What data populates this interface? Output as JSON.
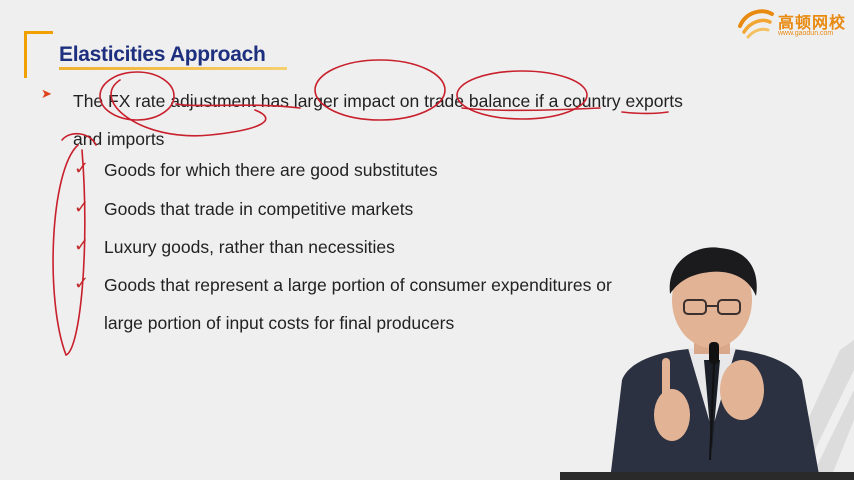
{
  "slide": {
    "title": "Elasticities Approach",
    "intro_bullet": "➤",
    "intro_text": "The FX rate adjustment has larger impact on trade balance if a country exports and imports",
    "check_symbol": "✓",
    "items": [
      "Goods for which there are good substitutes",
      "Goods that trade in competitive markets",
      "Luxury goods, rather than necessities",
      "Goods that represent a large portion of consumer expenditures or"
    ],
    "item_continuation": "large portion of input costs for final producers"
  },
  "logo": {
    "name": "高顿网校",
    "url": "www.gaodun.com"
  },
  "colors": {
    "title": "#1d2f7e",
    "accent": "#f0a000",
    "ink": "#c8202c",
    "text": "#222222"
  }
}
